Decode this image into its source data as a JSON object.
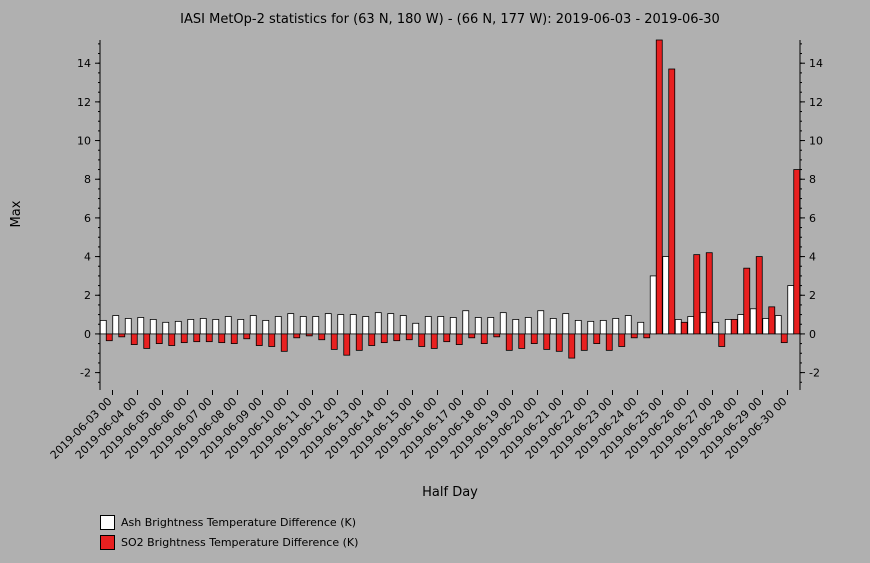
{
  "chart_data": {
    "type": "bar",
    "title": "IASI MetOp-2 statistics for (63 N, 180 W) - (66 N, 177 W): 2019-06-03 - 2019-06-30",
    "xlabel": "Half Day",
    "ylabel": "Max",
    "ylim": [
      -2.9,
      15.2
    ],
    "yticks": [
      -2,
      0,
      2,
      4,
      6,
      8,
      10,
      12,
      14
    ],
    "x_tick_labels": [
      "2019-06-03 00",
      "2019-06-04 00",
      "2019-06-05 00",
      "2019-06-06 00",
      "2019-06-07 00",
      "2019-06-08 00",
      "2019-06-09 00",
      "2019-06-10 00",
      "2019-06-11 00",
      "2019-06-12 00",
      "2019-06-13 00",
      "2019-06-14 00",
      "2019-06-15 00",
      "2019-06-16 00",
      "2019-06-17 00",
      "2019-06-18 00",
      "2019-06-19 00",
      "2019-06-20 00",
      "2019-06-21 00",
      "2019-06-22 00",
      "2019-06-23 00",
      "2019-06-24 00",
      "2019-06-25 00",
      "2019-06-26 00",
      "2019-06-27 00",
      "2019-06-28 00",
      "2019-06-29 00",
      "2019-06-30 00"
    ],
    "legend_position": "bottom-left",
    "series": [
      {
        "name": "Ash Brightness Temperature Difference (K)",
        "color": "#ffffff",
        "values": [
          0.7,
          0.95,
          0.8,
          0.85,
          0.75,
          0.6,
          0.65,
          0.75,
          0.8,
          0.75,
          0.9,
          0.75,
          0.95,
          0.7,
          0.9,
          1.05,
          0.9,
          0.9,
          1.05,
          1.0,
          1.0,
          0.9,
          1.1,
          1.05,
          0.95,
          0.55,
          0.9,
          0.9,
          0.85,
          1.2,
          0.85,
          0.85,
          1.1,
          0.75,
          0.85,
          1.2,
          0.8,
          1.05,
          0.7,
          0.65,
          0.7,
          0.8,
          0.95,
          0.6,
          3.0,
          4.0,
          0.75,
          0.9,
          1.1,
          0.6,
          0.75,
          1.0,
          1.3,
          0.8,
          0.95,
          2.5
        ]
      },
      {
        "name": "SO2 Brightness Temperature Difference (K)",
        "color": "#e82020",
        "values": [
          -0.35,
          -0.15,
          -0.55,
          -0.75,
          -0.5,
          -0.6,
          -0.45,
          -0.4,
          -0.4,
          -0.45,
          -0.5,
          -0.25,
          -0.6,
          -0.65,
          -0.9,
          -0.2,
          -0.1,
          -0.3,
          -0.8,
          -1.1,
          -0.85,
          -0.6,
          -0.45,
          -0.35,
          -0.3,
          -0.65,
          -0.75,
          -0.4,
          -0.55,
          -0.2,
          -0.5,
          -0.15,
          -0.85,
          -0.75,
          -0.5,
          -0.8,
          -0.9,
          -1.25,
          -0.85,
          -0.5,
          -0.85,
          -0.65,
          -0.2,
          -0.2,
          15.2,
          13.7,
          0.6,
          4.1,
          4.2,
          -0.65,
          0.75,
          3.4,
          4.0,
          1.4,
          -0.45,
          8.5
        ]
      }
    ]
  }
}
